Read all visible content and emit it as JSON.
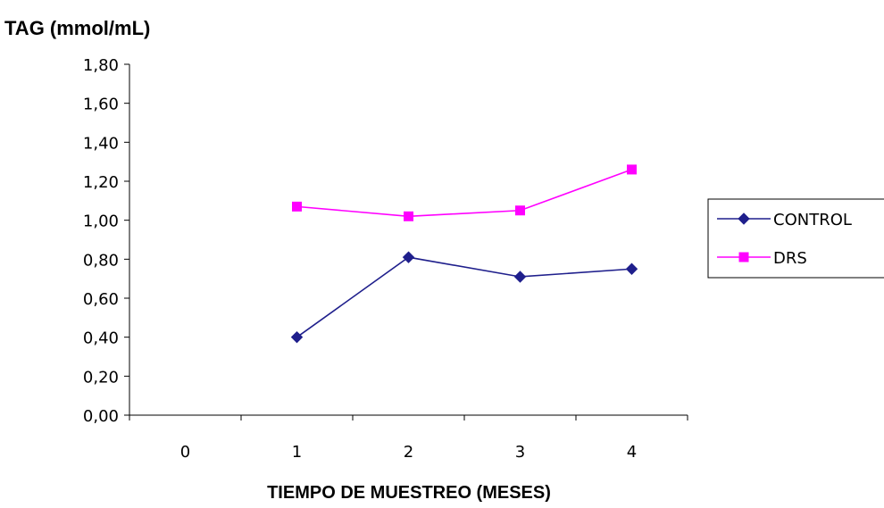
{
  "chart_data": {
    "type": "line",
    "title": "",
    "ylabel": "TAG (mmol/mL)",
    "xlabel": "TIEMPO DE MUESTREO (MESES)",
    "categories": [
      "0",
      "1",
      "2",
      "3",
      "4"
    ],
    "ylim": [
      0,
      1.8
    ],
    "yticks": [
      "0,00",
      "0,20",
      "0,40",
      "0,60",
      "0,80",
      "1,00",
      "1,20",
      "1,40",
      "1,60",
      "1,80"
    ],
    "grid": false,
    "legend_position": "right",
    "series": [
      {
        "name": "CONTROL",
        "x": [
          "1",
          "2",
          "3",
          "4"
        ],
        "values": [
          0.4,
          0.81,
          0.71,
          0.75
        ],
        "color": "#1F1F8C",
        "marker": "diamond"
      },
      {
        "name": "DRS",
        "x": [
          "1",
          "2",
          "3",
          "4"
        ],
        "values": [
          1.07,
          1.02,
          1.05,
          1.26
        ],
        "color": "#FF00FF",
        "marker": "square"
      }
    ]
  }
}
